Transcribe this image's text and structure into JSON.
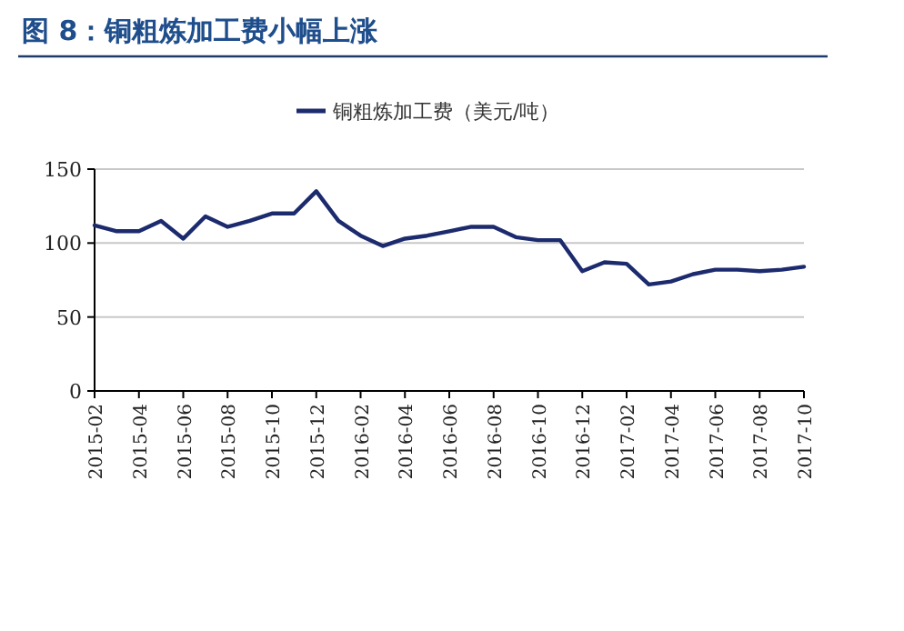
{
  "chart_data": {
    "type": "line",
    "title": "图 8：铜粗炼加工费小幅上涨",
    "categories": [
      "2015-02",
      null,
      "2015-04",
      null,
      "2015-06",
      null,
      "2015-08",
      null,
      "2015-10",
      null,
      "2015-12",
      null,
      "2016-02",
      null,
      "2016-04",
      null,
      "2016-06",
      null,
      "2016-08",
      null,
      "2016-10",
      null,
      "2016-12",
      null,
      "2017-02",
      null,
      "2017-04",
      null,
      "2017-06",
      null,
      "2017-08",
      null,
      "2017-10"
    ],
    "series": [
      {
        "name": "铜粗炼加工费（美元/吨）",
        "color": "#1c2a6e",
        "values": [
          112,
          108,
          108,
          115,
          103,
          118,
          111,
          115,
          120,
          120,
          135,
          115,
          105,
          98,
          103,
          105,
          108,
          111,
          111,
          104,
          102,
          102,
          81,
          87,
          86,
          72,
          74,
          79,
          82,
          82,
          81,
          82,
          84
        ]
      }
    ],
    "ylim": [
      0,
      150
    ],
    "yticks": [
      0,
      50,
      100,
      150
    ],
    "grid": "y",
    "legend": "top"
  }
}
